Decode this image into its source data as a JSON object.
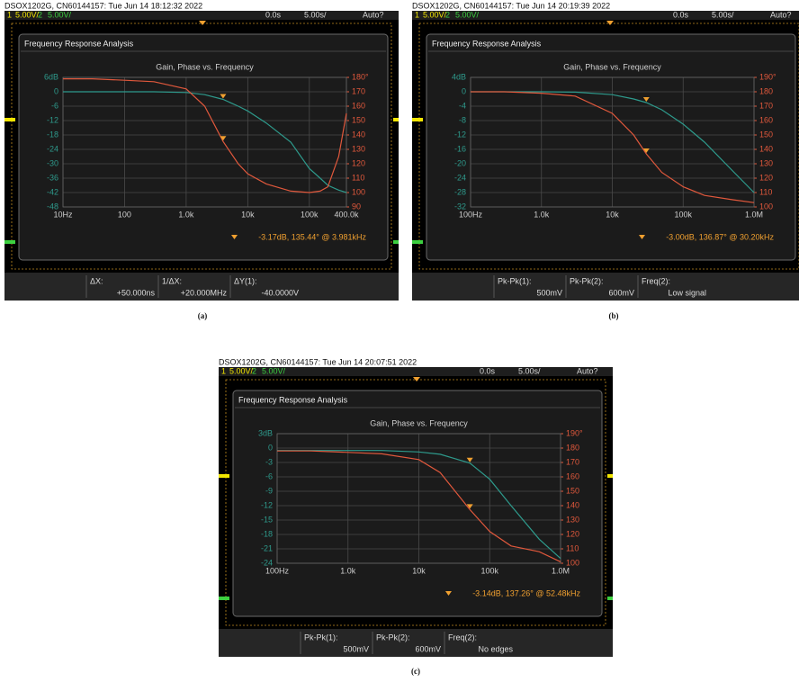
{
  "chart_data": [
    {
      "type": "line",
      "panel_label": "(a)",
      "header": "DSOX1202G, CN60144157: Tue Jun 14 18:12:32 2022",
      "status": [
        "1",
        "5.00V/",
        "2",
        "5.00V/",
        "0.0s",
        "5.00s/",
        "Auto?"
      ],
      "window_title": "Frequency Response Analysis",
      "title": "Gain, Phase vs. Frequency",
      "xscale": "log",
      "grid": true,
      "x": [
        10,
        30,
        100,
        300,
        1000,
        2000,
        3981,
        7000,
        10000,
        20000,
        50000,
        100000,
        150000,
        200000,
        300000,
        400000
      ],
      "xlim": [
        10,
        400000
      ],
      "xticks": [
        {
          "value": 10,
          "label": "10Hz"
        },
        100,
        {
          "value": 1000,
          "label": "1.0k"
        },
        {
          "value": 10000,
          "label": "10k"
        },
        {
          "value": 100000,
          "label": "100k"
        },
        {
          "value": 400000,
          "label": "400.0k"
        }
      ],
      "ylim": [
        -48,
        6
      ],
      "yticks": [
        {
          "value": 6,
          "label": "6dB"
        },
        0,
        -6,
        -12,
        -18,
        -24,
        -30,
        -36,
        -42,
        -48
      ],
      "y2lim": [
        90,
        180
      ],
      "y2ticks": [
        {
          "value": 180,
          "label": "180°"
        },
        170,
        160,
        150,
        140,
        130,
        120,
        110,
        100,
        90
      ],
      "series": [
        {
          "color": "#2e9a8c",
          "values": [
            0,
            0,
            0,
            0,
            -0.3,
            -1.2,
            -3.17,
            -6,
            -8,
            -13,
            -21,
            -32,
            -36,
            -39,
            -41,
            -42
          ]
        },
        {
          "color": "#e0583c",
          "axis": "y2",
          "values": [
            179,
            179,
            178,
            177,
            172,
            160,
            135.44,
            120,
            113,
            106,
            101,
            100,
            101,
            104,
            125,
            155
          ]
        }
      ],
      "readout": "-3.17dB, 135.44° @ 3.981kHz",
      "measurements": [
        {
          "label": "ΔX:",
          "value": "+50.000ns"
        },
        {
          "label": "1/ΔX:",
          "value": "+20.000MHz"
        },
        {
          "label": "ΔY(1):",
          "value": "-40.0000V"
        }
      ]
    },
    {
      "type": "line",
      "panel_label": "(b)",
      "header": "DSOX1202G, CN60144157: Tue Jun 14 20:19:39 2022",
      "status": [
        "1",
        "5.00V/",
        "2",
        "5.00V/",
        "0.0s",
        "5.00s/",
        "Auto?"
      ],
      "window_title": "Frequency Response Analysis",
      "title": "Gain, Phase vs. Frequency",
      "xscale": "log",
      "grid": true,
      "x": [
        100,
        300,
        1000,
        3000,
        10000,
        20000,
        30200,
        50000,
        100000,
        200000,
        500000,
        1000000
      ],
      "xlim": [
        100,
        1000000
      ],
      "xticks": [
        {
          "value": 100,
          "label": "100Hz"
        },
        {
          "value": 1000,
          "label": "1.0k"
        },
        {
          "value": 10000,
          "label": "10k"
        },
        {
          "value": 100000,
          "label": "100k"
        },
        {
          "value": 1000000,
          "label": "1.0M"
        }
      ],
      "ylim": [
        -32,
        4
      ],
      "yticks": [
        {
          "value": 4,
          "label": "4dB"
        },
        0,
        -4,
        -8,
        -12,
        -16,
        -20,
        -24,
        -28,
        -32
      ],
      "y2lim": [
        100,
        190
      ],
      "y2ticks": [
        {
          "value": 190,
          "label": "190°"
        },
        180,
        170,
        160,
        150,
        140,
        130,
        120,
        110,
        100
      ],
      "series": [
        {
          "color": "#2e9a8c",
          "values": [
            0,
            0,
            0,
            -0.1,
            -0.8,
            -2,
            -3,
            -5,
            -9,
            -14,
            -22,
            -28
          ]
        },
        {
          "color": "#e0583c",
          "axis": "y2",
          "values": [
            180,
            180,
            179,
            177,
            165,
            150,
            136.87,
            124,
            114,
            108,
            105,
            103
          ]
        }
      ],
      "readout": "-3.00dB, 136.87° @ 30.20kHz",
      "measurements": [
        {
          "label": "Pk-Pk(1):",
          "value": "500mV"
        },
        {
          "label": "Pk-Pk(2):",
          "value": "600mV"
        },
        {
          "label": "Freq(2):",
          "value": "Low signal"
        }
      ]
    },
    {
      "type": "line",
      "panel_label": "(c)",
      "header": "DSOX1202G, CN60144157: Tue Jun 14 20:07:51 2022",
      "status": [
        "1",
        "5.00V/",
        "2",
        "5.00V/",
        "0.0s",
        "5.00s/",
        "Auto?"
      ],
      "window_title": "Frequency Response Analysis",
      "title": "Gain, Phase vs. Frequency",
      "xscale": "log",
      "grid": true,
      "x": [
        100,
        300,
        1000,
        3000,
        10000,
        20000,
        52480,
        100000,
        200000,
        500000,
        1000000
      ],
      "xlim": [
        100,
        1000000
      ],
      "xticks": [
        {
          "value": 100,
          "label": "100Hz"
        },
        {
          "value": 1000,
          "label": "1.0k"
        },
        {
          "value": 10000,
          "label": "10k"
        },
        {
          "value": 100000,
          "label": "100k"
        },
        {
          "value": 1000000,
          "label": "1.0M"
        }
      ],
      "ylim": [
        -24,
        3
      ],
      "yticks": [
        {
          "value": 3,
          "label": "3dB"
        },
        0,
        -3,
        -6,
        -9,
        -12,
        -15,
        -18,
        -21,
        -24
      ],
      "y2lim": [
        100,
        190
      ],
      "y2ticks": [
        {
          "value": 190,
          "label": "190°"
        },
        180,
        170,
        160,
        150,
        140,
        130,
        120,
        110,
        100
      ],
      "series": [
        {
          "color": "#2e9a8c",
          "values": [
            -0.5,
            -0.5,
            -0.5,
            -0.5,
            -0.8,
            -1.3,
            -3.14,
            -6.5,
            -12,
            -19,
            -23
          ]
        },
        {
          "color": "#e0583c",
          "axis": "y2",
          "values": [
            178,
            178,
            177,
            176,
            172,
            163,
            137.26,
            122,
            112,
            108,
            101
          ]
        }
      ],
      "readout": "-3.14dB, 137.26° @ 52.48kHz",
      "measurements": [
        {
          "label": "Pk-Pk(1):",
          "value": "500mV"
        },
        {
          "label": "Pk-Pk(2):",
          "value": "600mV"
        },
        {
          "label": "Freq(2):",
          "value": "No edges"
        }
      ]
    }
  ]
}
